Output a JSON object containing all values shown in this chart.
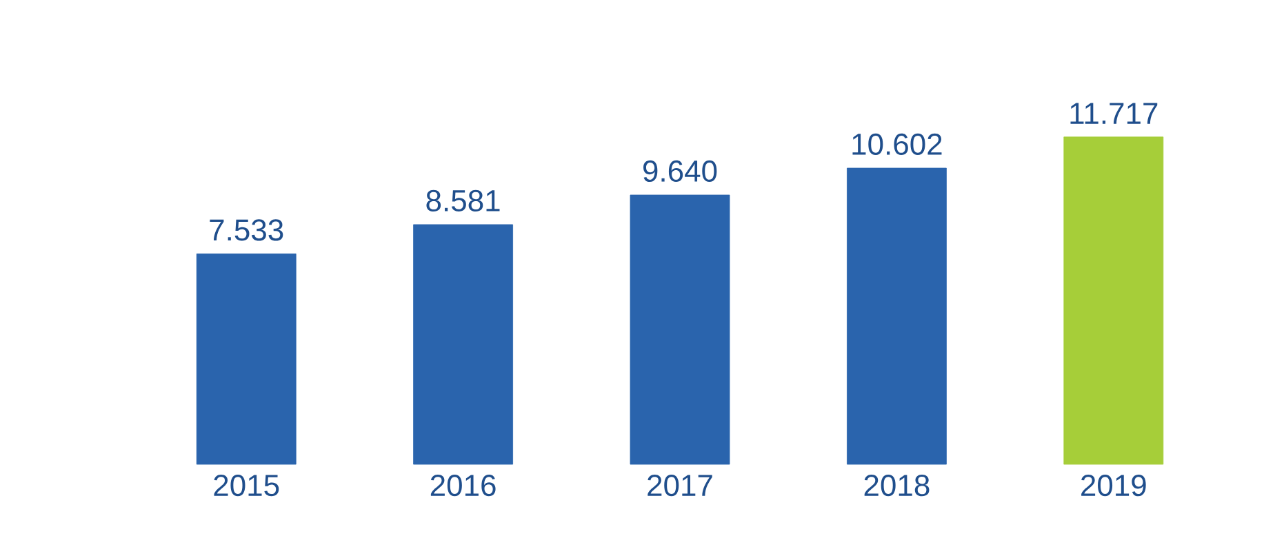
{
  "chart_data": {
    "type": "bar",
    "categories": [
      "2015",
      "2016",
      "2017",
      "2018",
      "2019"
    ],
    "values": [
      7.533,
      8.581,
      9.64,
      10.602,
      11.717
    ],
    "value_labels": [
      "7.533",
      "8.581",
      "9.640",
      "10.602",
      "11.717"
    ],
    "colors": [
      "#2a64ad",
      "#2a64ad",
      "#2a64ad",
      "#2a64ad",
      "#a6ce39"
    ]
  }
}
